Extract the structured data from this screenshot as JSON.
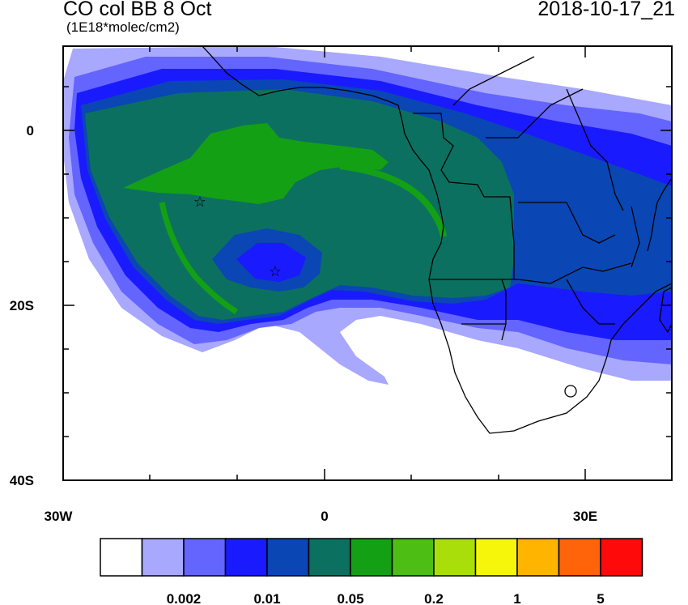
{
  "header": {
    "title": "CO col BB 8 Oct",
    "subtitle": "(1E18*molec/cm2)",
    "timestamp": "2018-10-17_21"
  },
  "axes": {
    "y_ticks": [
      "0",
      "20S",
      "40S"
    ],
    "x_ticks": [
      "30W",
      "0",
      "30E"
    ]
  },
  "colorbar": {
    "colors": [
      "#ffffff",
      "#a8a8ff",
      "#6464ff",
      "#1a1aff",
      "#0a46b4",
      "#0c7060",
      "#14a014",
      "#4cbe14",
      "#aade0a",
      "#f6f60a",
      "#ffb400",
      "#ff640a",
      "#ff0a0a"
    ],
    "labels": [
      "0.002",
      "0.01",
      "0.05",
      "0.2",
      "1",
      "5"
    ]
  },
  "markers": [
    {
      "name": "fire-site-marker",
      "symbol": "☆"
    },
    {
      "name": "fire-site-marker",
      "symbol": "☆"
    }
  ],
  "plume_colors": {
    "faint": "#a8a8ff",
    "light": "#6464ff",
    "medium": "#1a1aff",
    "dense": "#0a46b4",
    "core": "#0c7060",
    "peak": "#14a014"
  }
}
